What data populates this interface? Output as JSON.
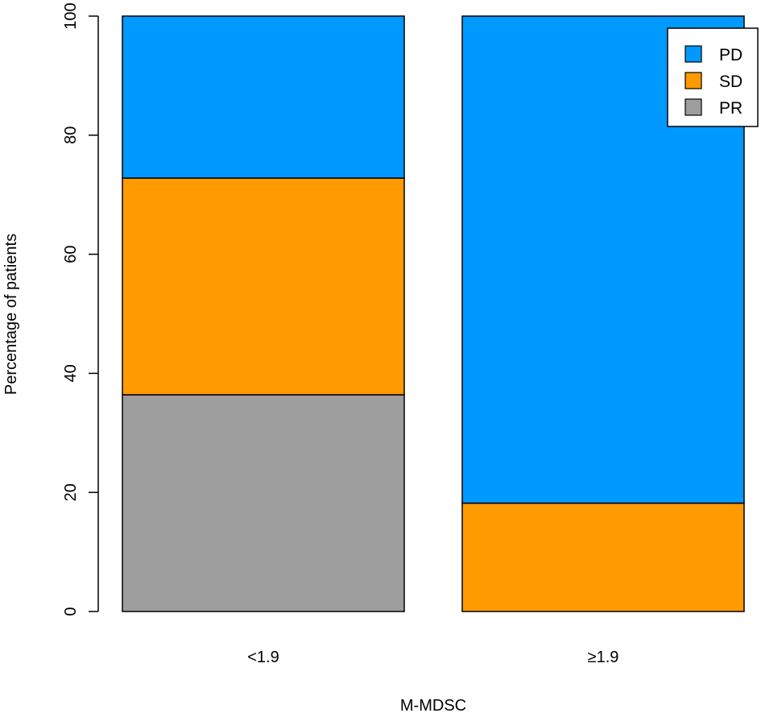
{
  "chart_data": {
    "type": "bar",
    "stacked": true,
    "title": "",
    "xlabel": "M-MDSC",
    "ylabel": "Percentage of patients",
    "categories": [
      "<1.9",
      "≥1.9"
    ],
    "ylim": [
      0,
      100
    ],
    "yticks": [
      0,
      20,
      40,
      60,
      80,
      100
    ],
    "grid": false,
    "legend_position": "top-right",
    "series": [
      {
        "name": "PR",
        "color": "#9e9e9e",
        "values": [
          36.4,
          0
        ]
      },
      {
        "name": "SD",
        "color": "#ff9a00",
        "values": [
          36.4,
          18.2
        ]
      },
      {
        "name": "PD",
        "color": "#0099ff",
        "values": [
          27.2,
          81.8
        ]
      }
    ],
    "legend_order": [
      "PD",
      "SD",
      "PR"
    ]
  }
}
